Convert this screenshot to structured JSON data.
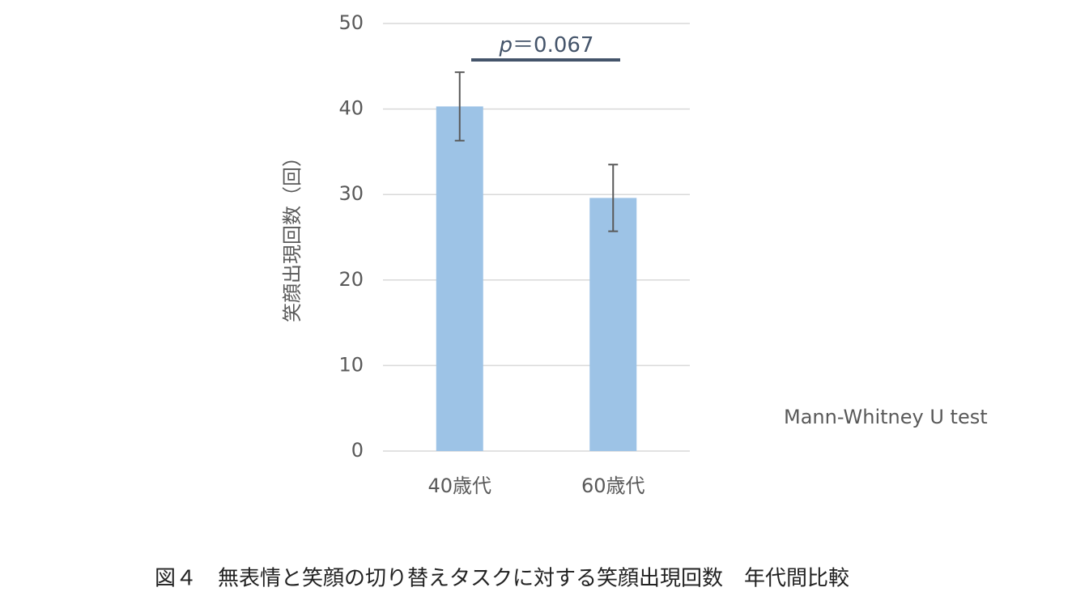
{
  "chart_data": {
    "type": "bar",
    "y_label": "笑顔出現回数（回）",
    "categories": [
      "40歳代",
      "60歳代"
    ],
    "values": [
      40.3,
      29.6
    ],
    "errors": [
      4.0,
      3.9
    ],
    "color": "#9dc3e6",
    "ylim": [
      0,
      50
    ],
    "yticks": [
      0,
      10,
      20,
      30,
      40,
      50
    ],
    "grid": true,
    "annotation": {
      "symbol": "p",
      "text": "＝0.067"
    },
    "note": "Mann-Whitney U test",
    "caption": "図４　無表情と笑顔の切り替えタスクに対する笑顔出現回数　年代間比較"
  }
}
